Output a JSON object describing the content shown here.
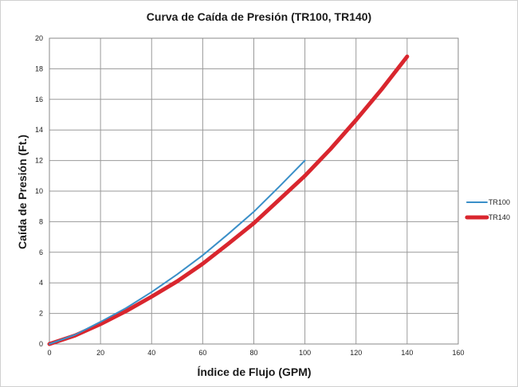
{
  "chart_data": {
    "type": "line",
    "title": "Curva de Caída de Presión (TR100, TR140)",
    "xlabel": "Índice de Flujo (GPM)",
    "ylabel": "Caída de Presión (Ft.)",
    "xlim": [
      0,
      160
    ],
    "ylim": [
      0,
      20
    ],
    "xticks": [
      0,
      20,
      40,
      60,
      80,
      100,
      120,
      140,
      160
    ],
    "yticks": [
      0,
      2,
      4,
      6,
      8,
      10,
      12,
      14,
      16,
      18,
      20
    ],
    "grid": true,
    "legend_position": "right",
    "series": [
      {
        "name": "TR100",
        "color": "#3a8fc8",
        "x": [
          0,
          10,
          20,
          30,
          40,
          50,
          60,
          70,
          80,
          90,
          100
        ],
        "y": [
          0,
          0.6,
          1.45,
          2.35,
          3.4,
          4.55,
          5.8,
          7.2,
          8.65,
          10.3,
          12.0
        ]
      },
      {
        "name": "TR140",
        "color": "#d9262e",
        "x": [
          0,
          10,
          20,
          30,
          40,
          50,
          60,
          70,
          80,
          90,
          100,
          110,
          120,
          130,
          140
        ],
        "y": [
          0,
          0.55,
          1.3,
          2.15,
          3.1,
          4.1,
          5.25,
          6.55,
          7.9,
          9.45,
          11.0,
          12.75,
          14.65,
          16.65,
          18.8
        ]
      }
    ]
  }
}
